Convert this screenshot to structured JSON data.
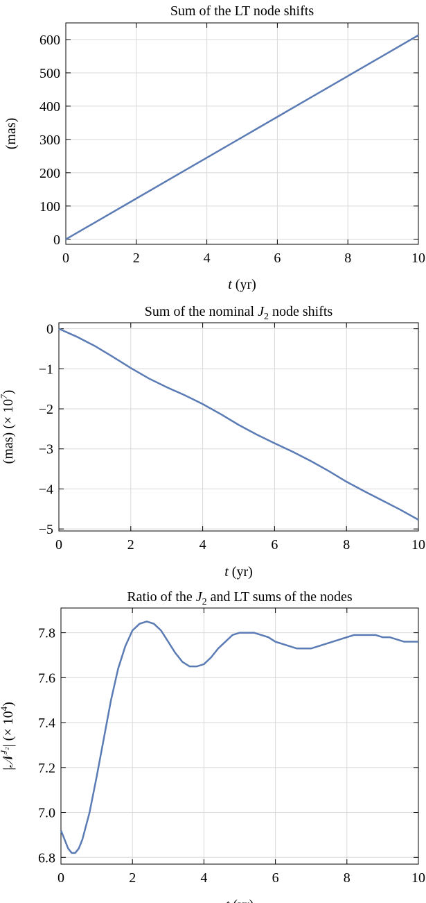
{
  "chart_data": [
    {
      "type": "line",
      "title": "Sum of the LT node shifts",
      "xlabel_italic": "t",
      "xlabel_rest": " (yr)",
      "ylabel": "(mas)",
      "xlim": [
        0,
        10
      ],
      "ylim": [
        -15,
        650
      ],
      "xticks": [
        0,
        2,
        4,
        6,
        8,
        10
      ],
      "yticks": [
        0,
        100,
        200,
        300,
        400,
        500,
        600
      ],
      "x": [
        0,
        1,
        2,
        3,
        4,
        5,
        6,
        7,
        8,
        9,
        10
      ],
      "y": [
        0,
        61.3,
        122.6,
        183.9,
        245.2,
        306.5,
        367.8,
        429.1,
        490.4,
        551.7,
        613
      ]
    },
    {
      "type": "line",
      "title_pre": "Sum of the nominal ",
      "title_sym": "J",
      "title_sub": "2",
      "title_post": " node shifts",
      "xlabel_italic": "t",
      "xlabel_rest": " (yr)",
      "ylabel": "(mas) (× 10",
      "ylabel_sup": "7",
      "ylabel_end": ")",
      "xlim": [
        0,
        10
      ],
      "ylim": [
        -5.05,
        0.15
      ],
      "xticks": [
        0,
        2,
        4,
        6,
        8,
        10
      ],
      "yticks": [
        0,
        -1,
        -2,
        -3,
        -4,
        -5
      ],
      "ytick_labels": [
        "0",
        "−1",
        "−2",
        "−3",
        "−4",
        "−5"
      ],
      "x": [
        0,
        0.5,
        1,
        1.5,
        2,
        2.5,
        3,
        3.5,
        4,
        4.5,
        5,
        5.5,
        6,
        6.5,
        7,
        7.5,
        8,
        8.5,
        9,
        9.5,
        10
      ],
      "y": [
        0,
        -0.2,
        -0.43,
        -0.7,
        -0.98,
        -1.24,
        -1.46,
        -1.66,
        -1.88,
        -2.13,
        -2.4,
        -2.64,
        -2.86,
        -3.07,
        -3.3,
        -3.55,
        -3.82,
        -4.06,
        -4.29,
        -4.52,
        -4.77
      ]
    },
    {
      "type": "line",
      "title_pre": "Ratio of the ",
      "title_sym": "J",
      "title_sub": "2",
      "title_post": " and LT sums of the nodes",
      "xlabel_italic": "t",
      "xlabel_rest": " (yr)",
      "ylabel": "|𝒩",
      "ylabel_sup": "J₂",
      "ylabel_end": "| (× 10",
      "ylabel_sup2": "4",
      "ylabel_end2": ")",
      "xlim": [
        0,
        10
      ],
      "ylim": [
        6.77,
        7.91
      ],
      "xticks": [
        0,
        2,
        4,
        6,
        8,
        10
      ],
      "yticks": [
        6.8,
        7.0,
        7.2,
        7.4,
        7.6,
        7.8
      ],
      "ytick_labels": [
        "6.8",
        "7.0",
        "7.2",
        "7.4",
        "7.6",
        "7.8"
      ],
      "x": [
        0,
        0.1,
        0.2,
        0.3,
        0.4,
        0.5,
        0.6,
        0.8,
        1.0,
        1.2,
        1.4,
        1.6,
        1.8,
        2.0,
        2.2,
        2.4,
        2.6,
        2.8,
        3.0,
        3.2,
        3.4,
        3.6,
        3.8,
        4.0,
        4.2,
        4.4,
        4.6,
        4.8,
        5.0,
        5.2,
        5.4,
        5.6,
        5.8,
        6.0,
        6.2,
        6.4,
        6.6,
        6.8,
        7.0,
        7.2,
        7.4,
        7.6,
        7.8,
        8.0,
        8.2,
        8.4,
        8.6,
        8.8,
        9.0,
        9.2,
        9.4,
        9.6,
        9.8,
        10.0
      ],
      "y": [
        6.92,
        6.88,
        6.84,
        6.82,
        6.82,
        6.84,
        6.88,
        7.0,
        7.16,
        7.33,
        7.5,
        7.64,
        7.74,
        7.81,
        7.84,
        7.85,
        7.84,
        7.81,
        7.76,
        7.71,
        7.67,
        7.65,
        7.65,
        7.66,
        7.69,
        7.73,
        7.76,
        7.79,
        7.8,
        7.8,
        7.8,
        7.79,
        7.78,
        7.76,
        7.75,
        7.74,
        7.73,
        7.73,
        7.73,
        7.74,
        7.75,
        7.76,
        7.77,
        7.78,
        7.79,
        7.79,
        7.79,
        7.79,
        7.78,
        7.78,
        7.77,
        7.76,
        7.76,
        7.76
      ]
    }
  ]
}
